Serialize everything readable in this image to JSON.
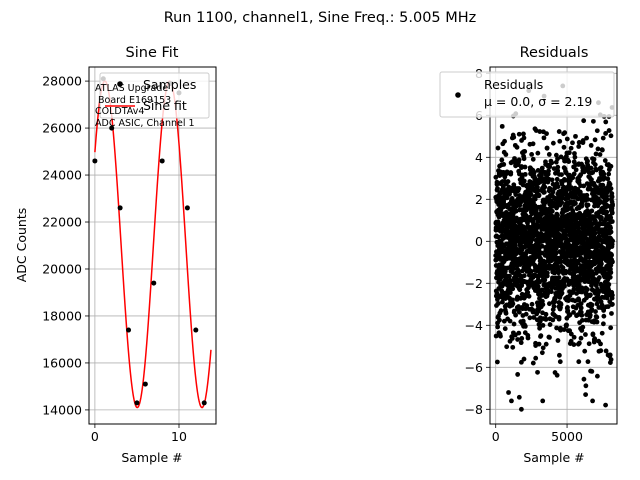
{
  "suptitle": "Run 1100, channel1, Sine Freq.: 5.005 MHz",
  "chart_data": [
    {
      "type": "scatter",
      "title": "Sine Fit",
      "xlabel": "Sample #",
      "ylabel": "ADC Counts",
      "xlim": [
        -0.7,
        14.4
      ],
      "ylim": [
        13400,
        28600
      ],
      "xticks": [
        "0",
        "10"
      ],
      "yticks": [
        "14000",
        "16000",
        "18000",
        "20000",
        "22000",
        "24000",
        "26000",
        "28000"
      ],
      "grid": true,
      "legend_position": "top-right",
      "series": [
        {
          "name": "Samples",
          "color": "#000000",
          "x": [
            0,
            1,
            2,
            3,
            4,
            5,
            6,
            7,
            8,
            9,
            10,
            11,
            12,
            13
          ],
          "y": [
            24600,
            28100,
            26000,
            22600,
            17400,
            14300,
            15100,
            19400,
            24600,
            27900,
            27500,
            22600,
            17400,
            14300
          ]
        },
        {
          "name": "Sine fit",
          "color": "#ff0000",
          "fit": {
            "amplitude": 6950,
            "offset": 21050,
            "frequency_per_sample": 0.1299,
            "phase_rad": 0.6,
            "x_range": [
              0,
              13.8
            ]
          }
        }
      ],
      "annotation": [
        "ATLAS Upgrade",
        "Board E169153",
        "COLDTAv4",
        "ADC ASIC, Channel 1"
      ]
    },
    {
      "type": "scatter",
      "title": "Residuals",
      "xlabel": "Sample #",
      "ylabel": "",
      "xlim": [
        -400,
        8500
      ],
      "ylim": [
        -8.7,
        8.3
      ],
      "xticks": [
        "0",
        "5000"
      ],
      "yticks": [
        "−8",
        "−6",
        "−4",
        "−2",
        "0",
        "2",
        "4",
        "6",
        "8"
      ],
      "grid": true,
      "legend_position": "top-right",
      "series": [
        {
          "name": "Residuals",
          "label_line2": "μ = 0.0, σ = 2.19",
          "color": "#000000",
          "n_points": 8192,
          "mean": 0.0,
          "sigma": 2.19,
          "notable_points": [
            [
              1800,
              -8.0
            ],
            [
              7700,
              -7.8
            ],
            [
              4700,
              7.4
            ],
            [
              7200,
              6.6
            ],
            [
              900,
              -7.2
            ],
            [
              6300,
              -7.3
            ]
          ]
        }
      ]
    }
  ]
}
